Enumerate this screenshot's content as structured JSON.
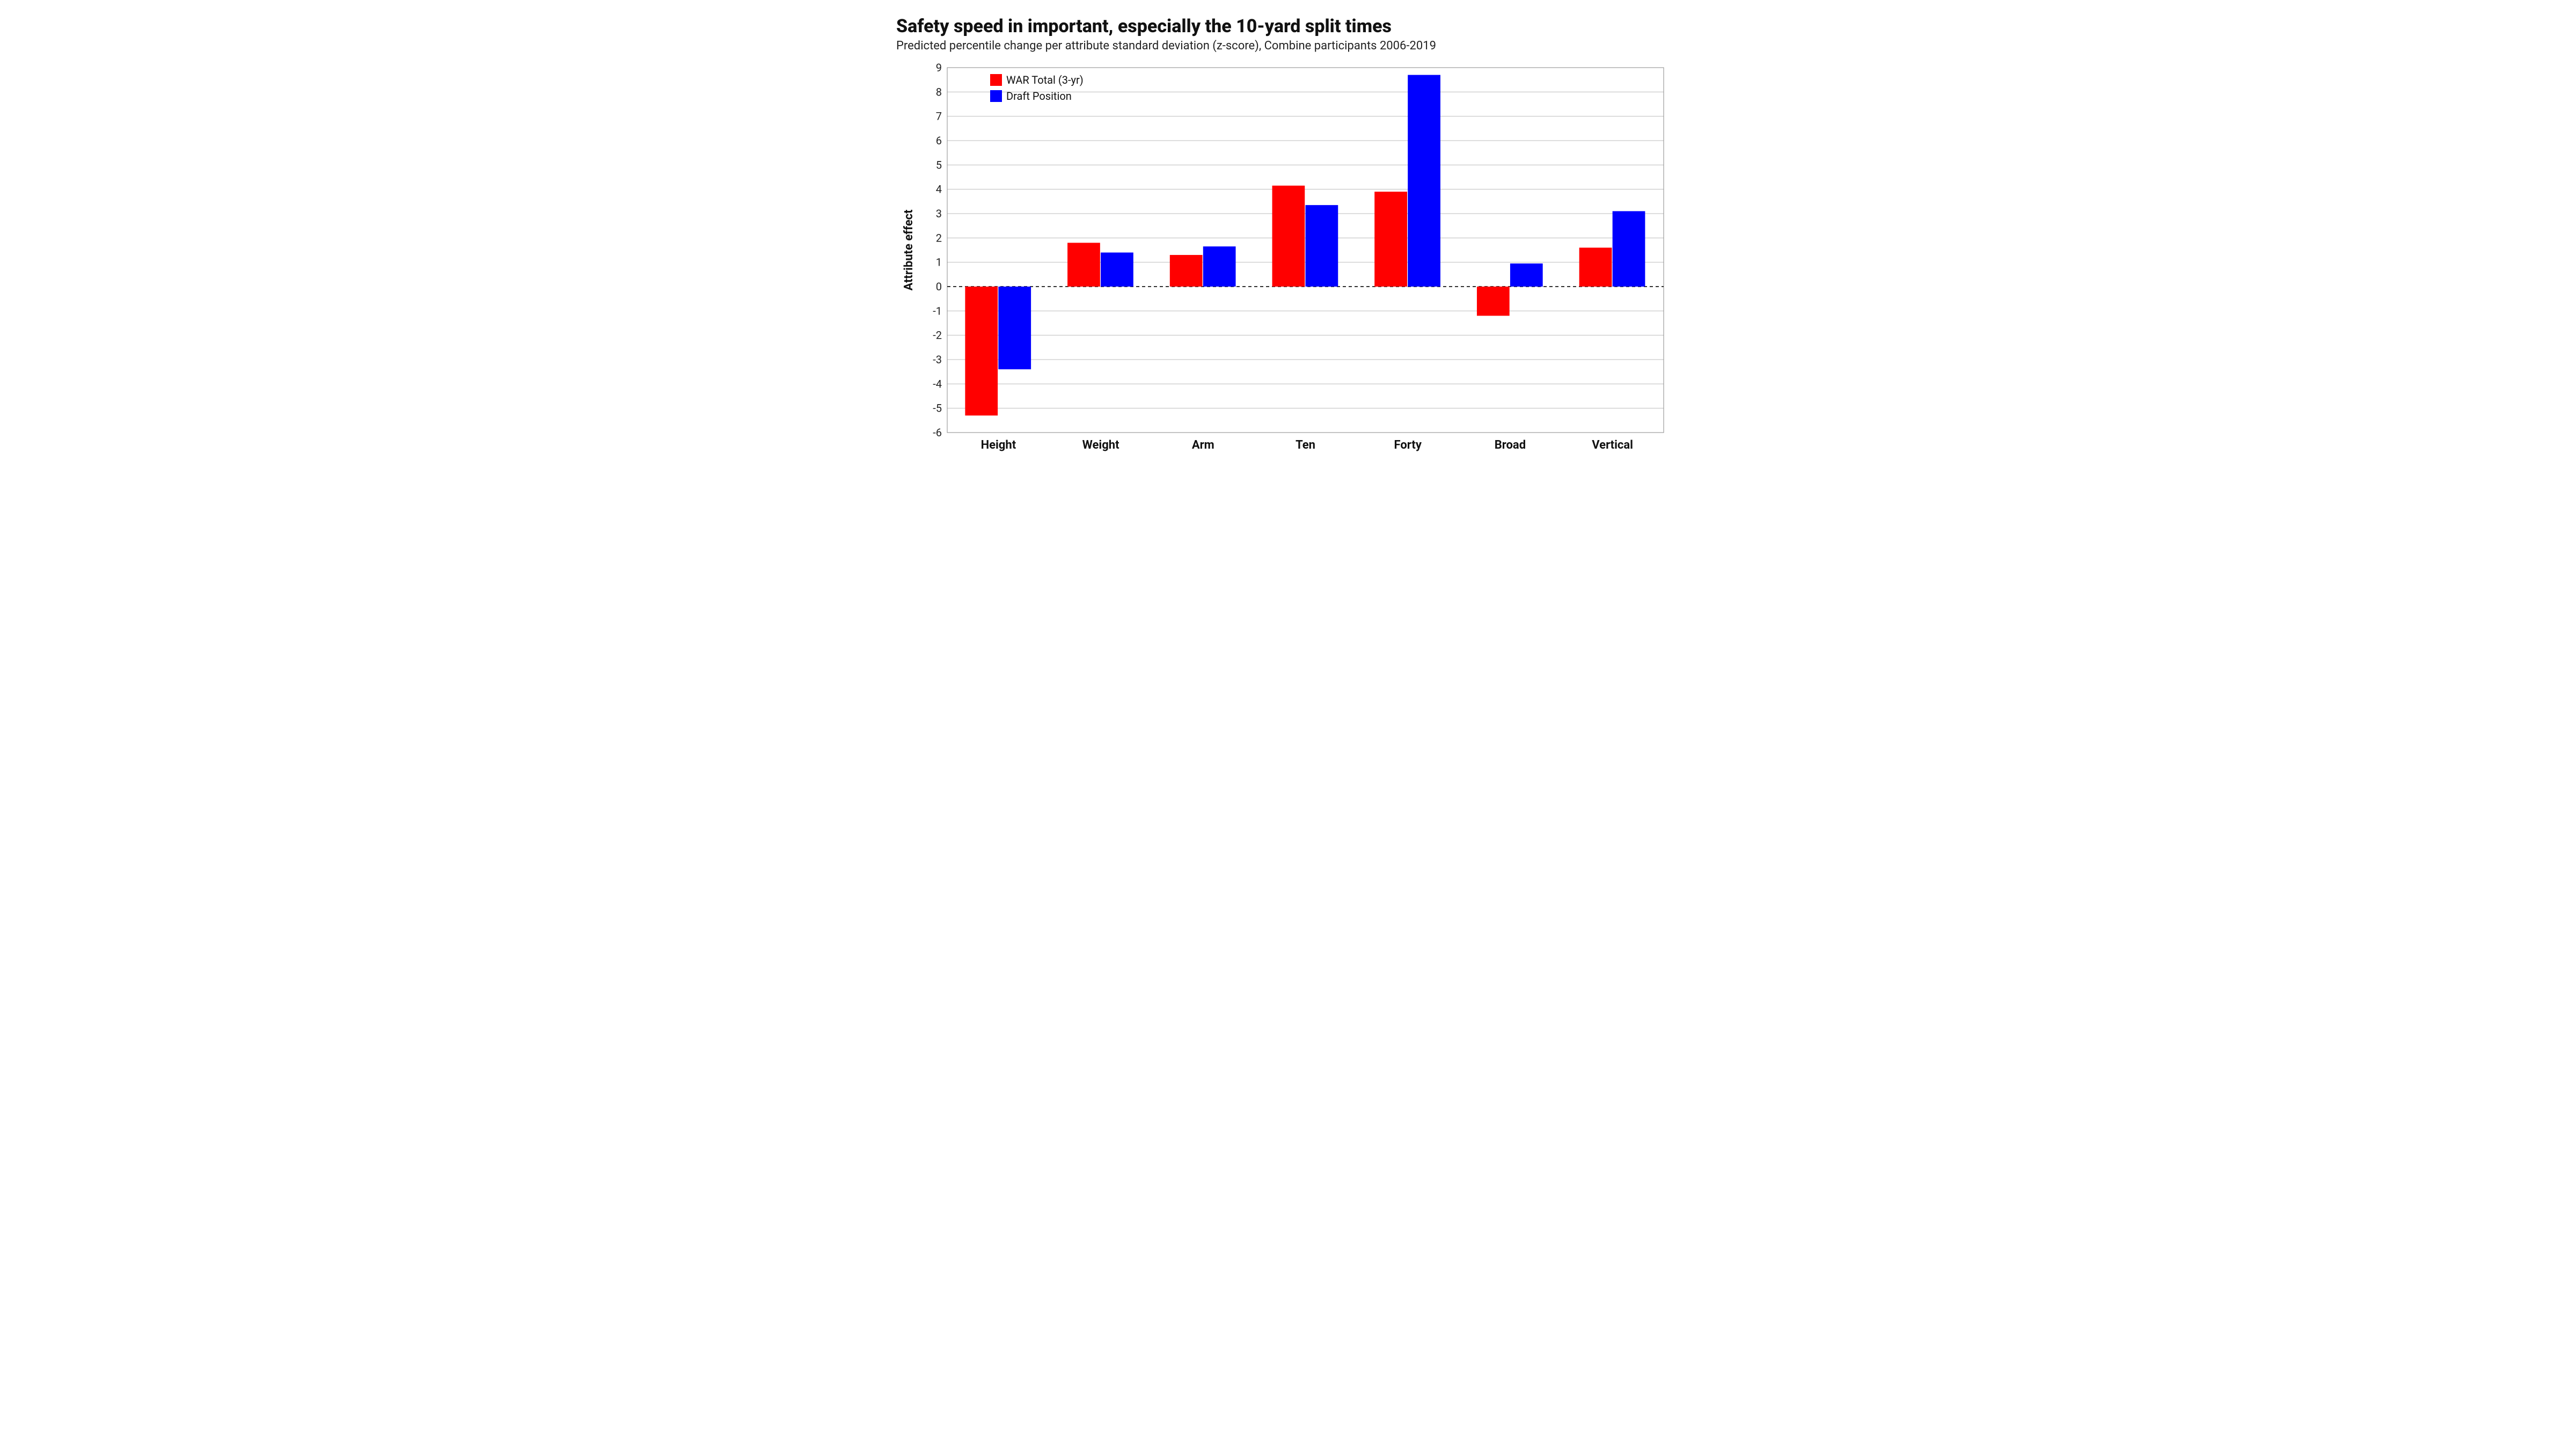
{
  "title": "Safety speed in important, especially the 10-yard split times",
  "subtitle": "Predicted percentile change per attribute standard deviation (z-score), Combine participants 2006-2019",
  "y_axis_label": "Attribute effect",
  "chart": {
    "type": "bar",
    "categories": [
      "Height",
      "Weight",
      "Arm",
      "Ten",
      "Forty",
      "Broad",
      "Vertical"
    ],
    "series": [
      {
        "name": "WAR Total (3-yr)",
        "color": "#ff0000",
        "values": [
          -5.3,
          1.8,
          1.3,
          4.15,
          3.9,
          -1.2,
          1.6
        ]
      },
      {
        "name": "Draft Position",
        "color": "#0000ff",
        "values": [
          -3.4,
          1.4,
          1.65,
          3.35,
          8.7,
          0.95,
          3.1
        ]
      }
    ],
    "ylim": [
      -6,
      9
    ],
    "ytick_step": 1,
    "background_color": "#ffffff",
    "grid_color": "#bdbdbd",
    "zero_line_color": "#333333",
    "bar_group_width": 0.65,
    "title_fontsize": 34,
    "subtitle_fontsize": 22,
    "label_fontsize": 22,
    "tick_fontsize": 20,
    "legend_position": "upper-left"
  }
}
